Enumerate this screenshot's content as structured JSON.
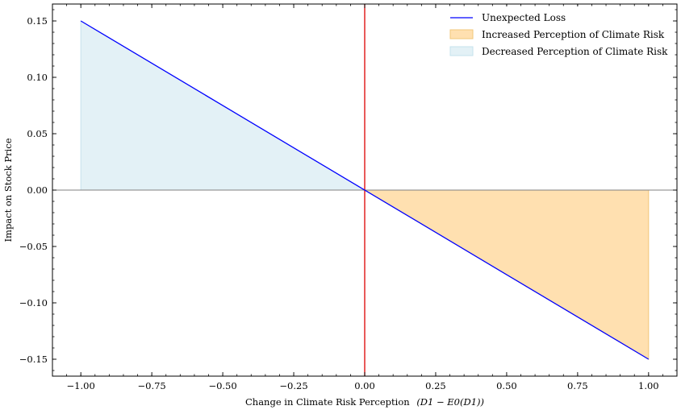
{
  "chart_data": {
    "type": "line",
    "title": "",
    "xlabel": "Change in Climate Risk Perception",
    "xlabel_math": "(D1 − E0(D1))",
    "ylabel": "Impact on Stock Price",
    "xlim": [
      -1.1,
      1.1
    ],
    "ylim": [
      -0.165,
      0.165
    ],
    "x_ticks": [
      -1.0,
      -0.75,
      -0.5,
      -0.25,
      0.0,
      0.25,
      0.5,
      0.75,
      1.0
    ],
    "x_tick_labels": [
      "−1.00",
      "−0.75",
      "−0.50",
      "−0.25",
      "0.00",
      "0.25",
      "0.50",
      "0.75",
      "1.00"
    ],
    "y_ticks": [
      0.15,
      0.1,
      0.05,
      0.0,
      -0.05,
      -0.1,
      -0.15
    ],
    "y_tick_labels": [
      "0.15",
      "0.10",
      "0.05",
      "0.00",
      "−0.05",
      "−0.10",
      "−0.15"
    ],
    "grid": false,
    "legend_position": "top-right",
    "series": [
      {
        "name": "Unexpected Loss",
        "kind": "line",
        "color": "#0000ff",
        "x": [
          -1.0,
          1.0
        ],
        "y": [
          0.15,
          -0.15
        ]
      },
      {
        "name": "Increased Perception of Climate Risk",
        "kind": "fill",
        "color": "#ffe0b0",
        "edge": "#f2c77a",
        "x": [
          0.0,
          1.0
        ],
        "y_top": [
          0.0,
          0.0
        ],
        "y_bottom": [
          0.0,
          -0.15
        ]
      },
      {
        "name": "Decreased Perception of Climate Risk",
        "kind": "fill",
        "color": "#e3f1f6",
        "edge": "#c6e2ec",
        "x": [
          -1.0,
          0.0
        ],
        "y_top": [
          0.15,
          0.0
        ],
        "y_bottom": [
          0.0,
          0.0
        ]
      }
    ],
    "reference_lines": [
      {
        "orientation": "vertical",
        "value": 0.0,
        "color": "#dd0000"
      },
      {
        "orientation": "horizontal",
        "value": 0.0,
        "color": "#808080"
      }
    ]
  }
}
